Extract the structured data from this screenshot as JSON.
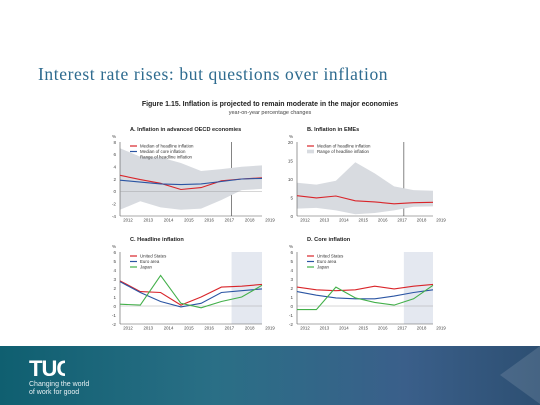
{
  "slide": {
    "title": "Interest rate rises: but questions over inflation",
    "figure_title_prefix": "Figure 1.15.",
    "figure_title": "Inflation is projected to remain moderate in the major economies",
    "figure_subtitle": "year-on-year percentage changes"
  },
  "footer": {
    "logo_text": "TUC",
    "tagline_line1": "Changing the world",
    "tagline_line2": "of work for good"
  },
  "colors": {
    "title": "#2e6b8f",
    "red": "#d9252a",
    "blue": "#2b55a3",
    "green": "#43b04a",
    "band": "#d8dbe0",
    "projection_shade": "#e4e8f0",
    "footer": "#1f6b80"
  },
  "chart_data": [
    {
      "type": "line",
      "panel": "A",
      "title": "A. Inflation in advanced OECD economies",
      "ylabel": "%",
      "ylim": [
        -4,
        8
      ],
      "yticks": [
        -4,
        -2,
        0,
        2,
        4,
        6,
        8
      ],
      "xticks": [
        "2012",
        "2013",
        "2014",
        "2015",
        "2016",
        "2017",
        "2018",
        "2019"
      ],
      "projection_start": 2017.5,
      "band": {
        "label": "Range of headline inflation",
        "lower": [
          -3,
          -1.6,
          -2.6,
          -3.0,
          -2.8,
          -1.4,
          0.2,
          0.4
        ],
        "upper": [
          7.0,
          5.6,
          5.5,
          4.6,
          3.3,
          3.6,
          4.0,
          4.2
        ]
      },
      "series": [
        {
          "name": "Median of headline inflation",
          "color": "red",
          "values": [
            2.6,
            1.9,
            1.3,
            0.3,
            0.6,
            1.7,
            2.0,
            2.2
          ]
        },
        {
          "name": "Median of core inflation",
          "color": "blue",
          "values": [
            1.8,
            1.5,
            1.2,
            1.1,
            1.2,
            1.6,
            2.0,
            2.1
          ]
        }
      ],
      "legend_position": "top-left"
    },
    {
      "type": "line",
      "panel": "B",
      "title": "B. Inflation in EMEs",
      "ylabel": "%",
      "ylim": [
        0,
        20
      ],
      "yticks": [
        0,
        5,
        10,
        15,
        20
      ],
      "xticks": [
        "2012",
        "2013",
        "2014",
        "2015",
        "2016",
        "2017",
        "2018",
        "2019"
      ],
      "projection_start": 2017.5,
      "band": {
        "label": "Range of headline inflation",
        "lower": [
          2.0,
          2.2,
          1.5,
          0.5,
          0.8,
          1.5,
          2.5,
          2.6
        ],
        "upper": [
          9.0,
          8.5,
          9.5,
          14.5,
          11.5,
          8.0,
          7.0,
          6.8
        ]
      },
      "series": [
        {
          "name": "Median of headline inflation",
          "color": "red",
          "values": [
            5.5,
            4.9,
            5.4,
            4.1,
            3.8,
            3.3,
            3.6,
            3.7
          ]
        }
      ],
      "legend_position": "top-left"
    },
    {
      "type": "line",
      "panel": "C",
      "title": "C. Headline inflation",
      "ylabel": "%",
      "ylim": [
        -2,
        6
      ],
      "yticks": [
        -2,
        -1,
        0,
        1,
        2,
        3,
        4,
        5,
        6
      ],
      "xticks": [
        "2012",
        "2013",
        "2014",
        "2015",
        "2016",
        "2017",
        "2018",
        "2019"
      ],
      "projection_start": 2017.5,
      "series": [
        {
          "name": "United States",
          "color": "red",
          "values": [
            2.8,
            1.6,
            1.5,
            0.1,
            1.0,
            2.1,
            2.2,
            2.4
          ]
        },
        {
          "name": "Euro area",
          "color": "blue",
          "values": [
            2.7,
            1.5,
            0.5,
            -0.1,
            0.3,
            1.5,
            1.7,
            1.9
          ]
        },
        {
          "name": "Japan",
          "color": "green",
          "values": [
            0.2,
            0.1,
            3.4,
            0.3,
            -0.2,
            0.5,
            1.0,
            2.3
          ]
        }
      ],
      "legend_position": "top-left"
    },
    {
      "type": "line",
      "panel": "D",
      "title": "D. Core inflation",
      "ylabel": "%",
      "ylim": [
        -2,
        6
      ],
      "yticks": [
        -2,
        -1,
        0,
        1,
        2,
        3,
        4,
        5,
        6
      ],
      "xticks": [
        "2012",
        "2013",
        "2014",
        "2015",
        "2016",
        "2017",
        "2018",
        "2019"
      ],
      "projection_start": 2017.5,
      "series": [
        {
          "name": "United States",
          "color": "red",
          "values": [
            2.1,
            1.8,
            1.7,
            1.8,
            2.2,
            1.9,
            2.2,
            2.4
          ]
        },
        {
          "name": "Euro area",
          "color": "blue",
          "values": [
            1.6,
            1.2,
            0.9,
            0.8,
            0.8,
            1.1,
            1.5,
            1.8
          ]
        },
        {
          "name": "Japan",
          "color": "green",
          "values": [
            -0.4,
            -0.4,
            2.1,
            0.9,
            0.4,
            0.1,
            0.8,
            2.3
          ]
        }
      ],
      "legend_position": "top-left"
    }
  ]
}
